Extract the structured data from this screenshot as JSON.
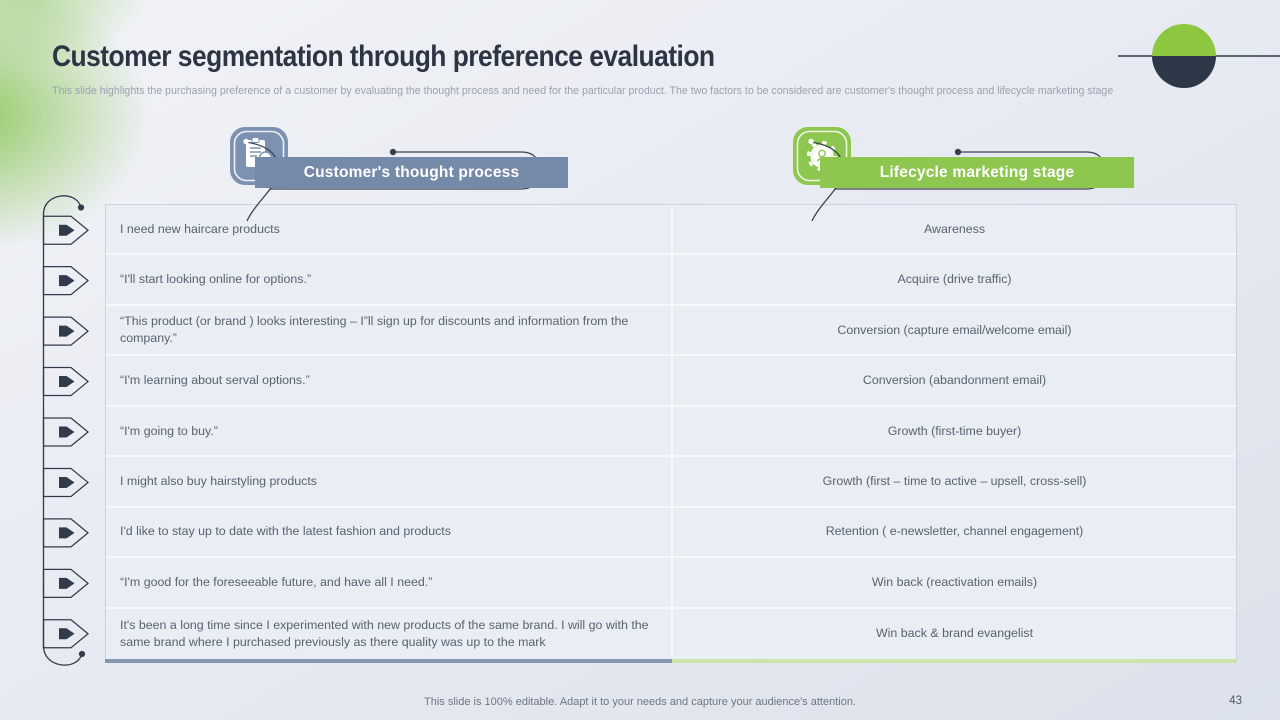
{
  "slide": {
    "title": "Customer segmentation through preference evaluation",
    "subtitle": "This slide highlights the purchasing preference of a customer by evaluating the thought process and need for the particular product. The two factors to be considered are customer's thought process and lifecycle marketing stage",
    "footer_note": "This slide is 100% editable. Adapt it to your needs and capture your audience's attention.",
    "page_number": "43"
  },
  "columns": [
    {
      "label": "Customer's thought process",
      "icon": "clipboard-person-icon",
      "color": "#7589a9",
      "accent": "#8897b0"
    },
    {
      "label": "Lifecycle marketing stage",
      "icon": "gear-head-icon",
      "color": "#8dc74f",
      "accent": "#cde4ab"
    }
  ],
  "table": {
    "rows": [
      {
        "thought": "I need new haircare products",
        "stage": "Awareness"
      },
      {
        "thought": "“I'll start looking online for options.”",
        "stage": "Acquire (drive traffic)"
      },
      {
        "thought": "“This product (or brand ) looks interesting – I”ll sign up for discounts and information from the company.”",
        "stage": "Conversion (capture email/welcome email)"
      },
      {
        "thought": "“I'm learning about serval options.”",
        "stage": "Conversion (abandonment email)"
      },
      {
        "thought": "“I'm going to buy.”",
        "stage": "Growth (first-time buyer)"
      },
      {
        "thought": "I might also buy hairstyling products",
        "stage": "Growth (first – time to active – upsell, cross-sell)"
      },
      {
        "thought": "I'd like to stay up to date with the latest fashion and products",
        "stage": "Retention ( e-newsletter, channel engagement)"
      },
      {
        "thought": "“I'm good for the foreseeable future, and have all I need.”",
        "stage": "Win back (reactivation emails)"
      },
      {
        "thought": "It's been a long time since I experimented with new products of the same brand. I will go with the same brand where I purchased previously as there quality was up to the mark",
        "stage": "Win back & brand evangelist"
      }
    ]
  },
  "colors": {
    "background": "#e8ebf2",
    "dark_navy": "#2c3848",
    "accent_green": "#8dc63f",
    "accent_slate": "#7589a9",
    "table_text": "#5a6270"
  }
}
